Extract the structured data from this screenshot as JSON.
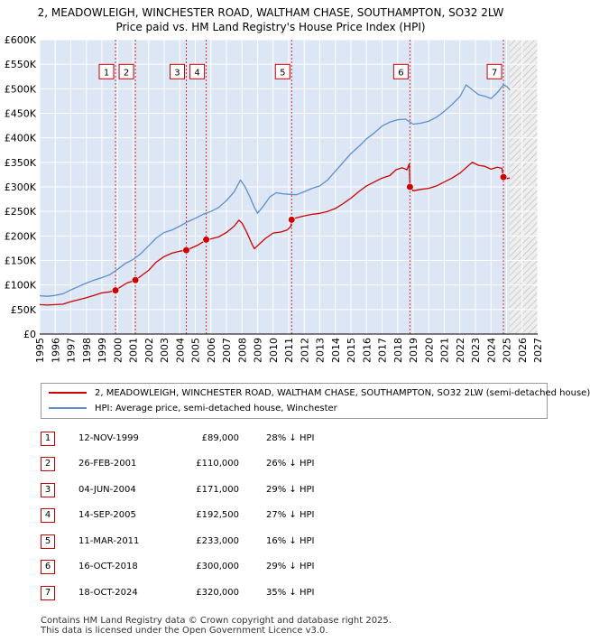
{
  "title": {
    "line1": "2, MEADOWLEIGH, WINCHESTER ROAD, WALTHAM CHASE, SOUTHAMPTON, SO32 2LW",
    "line2": "Price paid vs. HM Land Registry's House Price Index (HPI)"
  },
  "colors": {
    "red": "#cc0000",
    "blue": "#5b8fcc",
    "shade": "#dde6f5",
    "grid": "#d8d8d8"
  },
  "chart_data": {
    "type": "line",
    "xlim": [
      1995,
      2027
    ],
    "ylim": [
      0,
      600000
    ],
    "y_ticks": [
      {
        "value": 0,
        "label": "£0"
      },
      {
        "value": 50000,
        "label": "£50K"
      },
      {
        "value": 100000,
        "label": "£100K"
      },
      {
        "value": 150000,
        "label": "£150K"
      },
      {
        "value": 200000,
        "label": "£200K"
      },
      {
        "value": 250000,
        "label": "£250K"
      },
      {
        "value": 300000,
        "label": "£300K"
      },
      {
        "value": 350000,
        "label": "£350K"
      },
      {
        "value": 400000,
        "label": "£400K"
      },
      {
        "value": 450000,
        "label": "£450K"
      },
      {
        "value": 500000,
        "label": "£500K"
      },
      {
        "value": 550000,
        "label": "£550K"
      },
      {
        "value": 600000,
        "label": "£600K"
      }
    ],
    "x_ticks": [
      {
        "value": 1995,
        "label": "1995"
      },
      {
        "value": 1996,
        "label": "1996"
      },
      {
        "value": 1997,
        "label": "1997"
      },
      {
        "value": 1998,
        "label": "1998"
      },
      {
        "value": 1999,
        "label": "1999"
      },
      {
        "value": 2000,
        "label": "2000"
      },
      {
        "value": 2001,
        "label": "2001"
      },
      {
        "value": 2002,
        "label": "2002"
      },
      {
        "value": 2003,
        "label": "2003"
      },
      {
        "value": 2004,
        "label": "2004"
      },
      {
        "value": 2005,
        "label": "2005"
      },
      {
        "value": 2006,
        "label": "2006"
      },
      {
        "value": 2007,
        "label": "2007"
      },
      {
        "value": 2008,
        "label": "2008"
      },
      {
        "value": 2009,
        "label": "2009"
      },
      {
        "value": 2010,
        "label": "2010"
      },
      {
        "value": 2011,
        "label": "2011"
      },
      {
        "value": 2012,
        "label": "2012"
      },
      {
        "value": 2013,
        "label": "2013"
      },
      {
        "value": 2014,
        "label": "2014"
      },
      {
        "value": 2015,
        "label": "2015"
      },
      {
        "value": 2016,
        "label": "2016"
      },
      {
        "value": 2017,
        "label": "2017"
      },
      {
        "value": 2018,
        "label": "2018"
      },
      {
        "value": 2019,
        "label": "2019"
      },
      {
        "value": 2020,
        "label": "2020"
      },
      {
        "value": 2021,
        "label": "2021"
      },
      {
        "value": 2022,
        "label": "2022"
      },
      {
        "value": 2023,
        "label": "2023"
      },
      {
        "value": 2024,
        "label": "2024"
      },
      {
        "value": 2025,
        "label": "2025"
      },
      {
        "value": 2026,
        "label": "2026"
      },
      {
        "value": 2027,
        "label": "2027"
      }
    ],
    "forecast_start": 2025.2,
    "series": [
      {
        "name": "2, MEADOWLEIGH, WINCHESTER ROAD, WALTHAM CHASE, SOUTHAMPTON, SO32 2LW (semi-detached house)",
        "color": "#cc0000",
        "points": [
          [
            1995.0,
            60000
          ],
          [
            1995.5,
            59000
          ],
          [
            1996.0,
            60000
          ],
          [
            1996.5,
            61000
          ],
          [
            1997.0,
            66000
          ],
          [
            1997.5,
            70000
          ],
          [
            1998.0,
            74000
          ],
          [
            1998.5,
            79000
          ],
          [
            1999.0,
            84000
          ],
          [
            1999.5,
            86000
          ],
          [
            1999.87,
            89000
          ],
          [
            2000.2,
            96000
          ],
          [
            2000.6,
            104000
          ],
          [
            2001.0,
            108000
          ],
          [
            2001.15,
            110000
          ],
          [
            2001.5,
            118000
          ],
          [
            2002.0,
            130000
          ],
          [
            2002.5,
            147000
          ],
          [
            2003.0,
            158000
          ],
          [
            2003.5,
            165000
          ],
          [
            2004.0,
            169000
          ],
          [
            2004.42,
            171000
          ],
          [
            2004.8,
            176000
          ],
          [
            2005.2,
            182000
          ],
          [
            2005.5,
            188000
          ],
          [
            2005.7,
            192500
          ],
          [
            2006.0,
            194000
          ],
          [
            2006.5,
            198000
          ],
          [
            2007.0,
            207000
          ],
          [
            2007.5,
            220000
          ],
          [
            2007.8,
            232000
          ],
          [
            2008.0,
            226000
          ],
          [
            2008.3,
            208000
          ],
          [
            2008.6,
            186000
          ],
          [
            2008.8,
            174000
          ],
          [
            2009.0,
            180000
          ],
          [
            2009.5,
            195000
          ],
          [
            2010.0,
            206000
          ],
          [
            2010.5,
            208000
          ],
          [
            2010.9,
            212000
          ],
          [
            2011.15,
            220000
          ],
          [
            2011.19,
            233000
          ],
          [
            2011.5,
            237000
          ],
          [
            2012.0,
            241000
          ],
          [
            2012.5,
            244000
          ],
          [
            2013.0,
            246000
          ],
          [
            2013.5,
            250000
          ],
          [
            2014.0,
            256000
          ],
          [
            2014.5,
            266000
          ],
          [
            2015.0,
            277000
          ],
          [
            2015.5,
            290000
          ],
          [
            2016.0,
            302000
          ],
          [
            2016.5,
            310000
          ],
          [
            2017.0,
            318000
          ],
          [
            2017.5,
            323000
          ],
          [
            2017.9,
            335000
          ],
          [
            2018.3,
            339000
          ],
          [
            2018.6,
            335000
          ],
          [
            2018.75,
            347000
          ],
          [
            2018.79,
            300000
          ],
          [
            2019.0,
            292000
          ],
          [
            2019.5,
            295000
          ],
          [
            2020.0,
            297000
          ],
          [
            2020.5,
            302000
          ],
          [
            2021.0,
            310000
          ],
          [
            2021.5,
            318000
          ],
          [
            2022.0,
            328000
          ],
          [
            2022.5,
            342000
          ],
          [
            2022.8,
            350000
          ],
          [
            2023.2,
            344000
          ],
          [
            2023.6,
            342000
          ],
          [
            2024.0,
            336000
          ],
          [
            2024.4,
            340000
          ],
          [
            2024.7,
            338000
          ],
          [
            2024.8,
            320000
          ],
          [
            2025.0,
            317000
          ],
          [
            2025.2,
            318000
          ]
        ]
      },
      {
        "name": "HPI: Average price, semi-detached house, Winchester",
        "color": "#5b8fcc",
        "points": [
          [
            1995.0,
            78000
          ],
          [
            1995.5,
            77000
          ],
          [
            1996.0,
            79000
          ],
          [
            1996.5,
            82000
          ],
          [
            1997.0,
            90000
          ],
          [
            1997.5,
            97000
          ],
          [
            1998.0,
            104000
          ],
          [
            1998.5,
            110000
          ],
          [
            1999.0,
            115000
          ],
          [
            1999.5,
            121000
          ],
          [
            2000.0,
            132000
          ],
          [
            2000.5,
            144000
          ],
          [
            2001.0,
            152000
          ],
          [
            2001.5,
            164000
          ],
          [
            2002.0,
            180000
          ],
          [
            2002.5,
            196000
          ],
          [
            2003.0,
            207000
          ],
          [
            2003.5,
            212000
          ],
          [
            2004.0,
            220000
          ],
          [
            2004.5,
            229000
          ],
          [
            2005.0,
            236000
          ],
          [
            2005.5,
            244000
          ],
          [
            2006.0,
            250000
          ],
          [
            2006.5,
            258000
          ],
          [
            2007.0,
            272000
          ],
          [
            2007.5,
            290000
          ],
          [
            2007.9,
            314000
          ],
          [
            2008.2,
            300000
          ],
          [
            2008.5,
            280000
          ],
          [
            2008.8,
            258000
          ],
          [
            2009.0,
            246000
          ],
          [
            2009.4,
            262000
          ],
          [
            2009.8,
            280000
          ],
          [
            2010.2,
            288000
          ],
          [
            2010.6,
            286000
          ],
          [
            2011.0,
            285000
          ],
          [
            2011.5,
            284000
          ],
          [
            2012.0,
            290000
          ],
          [
            2012.5,
            297000
          ],
          [
            2013.0,
            302000
          ],
          [
            2013.5,
            314000
          ],
          [
            2014.0,
            332000
          ],
          [
            2014.5,
            350000
          ],
          [
            2015.0,
            368000
          ],
          [
            2015.5,
            382000
          ],
          [
            2016.0,
            398000
          ],
          [
            2016.5,
            410000
          ],
          [
            2017.0,
            424000
          ],
          [
            2017.5,
            432000
          ],
          [
            2018.0,
            437000
          ],
          [
            2018.5,
            438000
          ],
          [
            2019.0,
            428000
          ],
          [
            2019.5,
            430000
          ],
          [
            2020.0,
            434000
          ],
          [
            2020.5,
            442000
          ],
          [
            2021.0,
            454000
          ],
          [
            2021.5,
            468000
          ],
          [
            2022.0,
            484000
          ],
          [
            2022.4,
            508000
          ],
          [
            2022.8,
            498000
          ],
          [
            2023.2,
            488000
          ],
          [
            2023.6,
            485000
          ],
          [
            2024.0,
            480000
          ],
          [
            2024.4,
            492000
          ],
          [
            2024.8,
            508000
          ],
          [
            2025.0,
            505000
          ],
          [
            2025.2,
            498000
          ]
        ]
      }
    ],
    "sales": [
      {
        "label": "1",
        "x": 1999.87,
        "price": 89000
      },
      {
        "label": "2",
        "x": 2001.15,
        "price": 110000
      },
      {
        "label": "3",
        "x": 2004.42,
        "price": 171000
      },
      {
        "label": "4",
        "x": 2005.7,
        "price": 192500
      },
      {
        "label": "5",
        "x": 2011.19,
        "price": 233000
      },
      {
        "label": "6",
        "x": 2018.79,
        "price": 300000
      },
      {
        "label": "7",
        "x": 2024.8,
        "price": 320000
      }
    ],
    "marker_box_value": 535000
  },
  "legend": {
    "red_label": "2, MEADOWLEIGH, WINCHESTER ROAD, WALTHAM CHASE, SOUTHAMPTON, SO32 2LW (semi-detached house)",
    "blue_label": "HPI: Average price, semi-detached house, Winchester"
  },
  "table": [
    {
      "num": "1",
      "date": "12-NOV-1999",
      "price": "£89,000",
      "hpi": "28% ↓ HPI"
    },
    {
      "num": "2",
      "date": "26-FEB-2001",
      "price": "£110,000",
      "hpi": "26% ↓ HPI"
    },
    {
      "num": "3",
      "date": "04-JUN-2004",
      "price": "£171,000",
      "hpi": "29% ↓ HPI"
    },
    {
      "num": "4",
      "date": "14-SEP-2005",
      "price": "£192,500",
      "hpi": "27% ↓ HPI"
    },
    {
      "num": "5",
      "date": "11-MAR-2011",
      "price": "£233,000",
      "hpi": "16% ↓ HPI"
    },
    {
      "num": "6",
      "date": "16-OCT-2018",
      "price": "£300,000",
      "hpi": "29% ↓ HPI"
    },
    {
      "num": "7",
      "date": "18-OCT-2024",
      "price": "£320,000",
      "hpi": "35% ↓ HPI"
    }
  ],
  "footer": {
    "line1": "Contains HM Land Registry data © Crown copyright and database right 2025.",
    "line2": "This data is licensed under the Open Government Licence v3.0."
  }
}
